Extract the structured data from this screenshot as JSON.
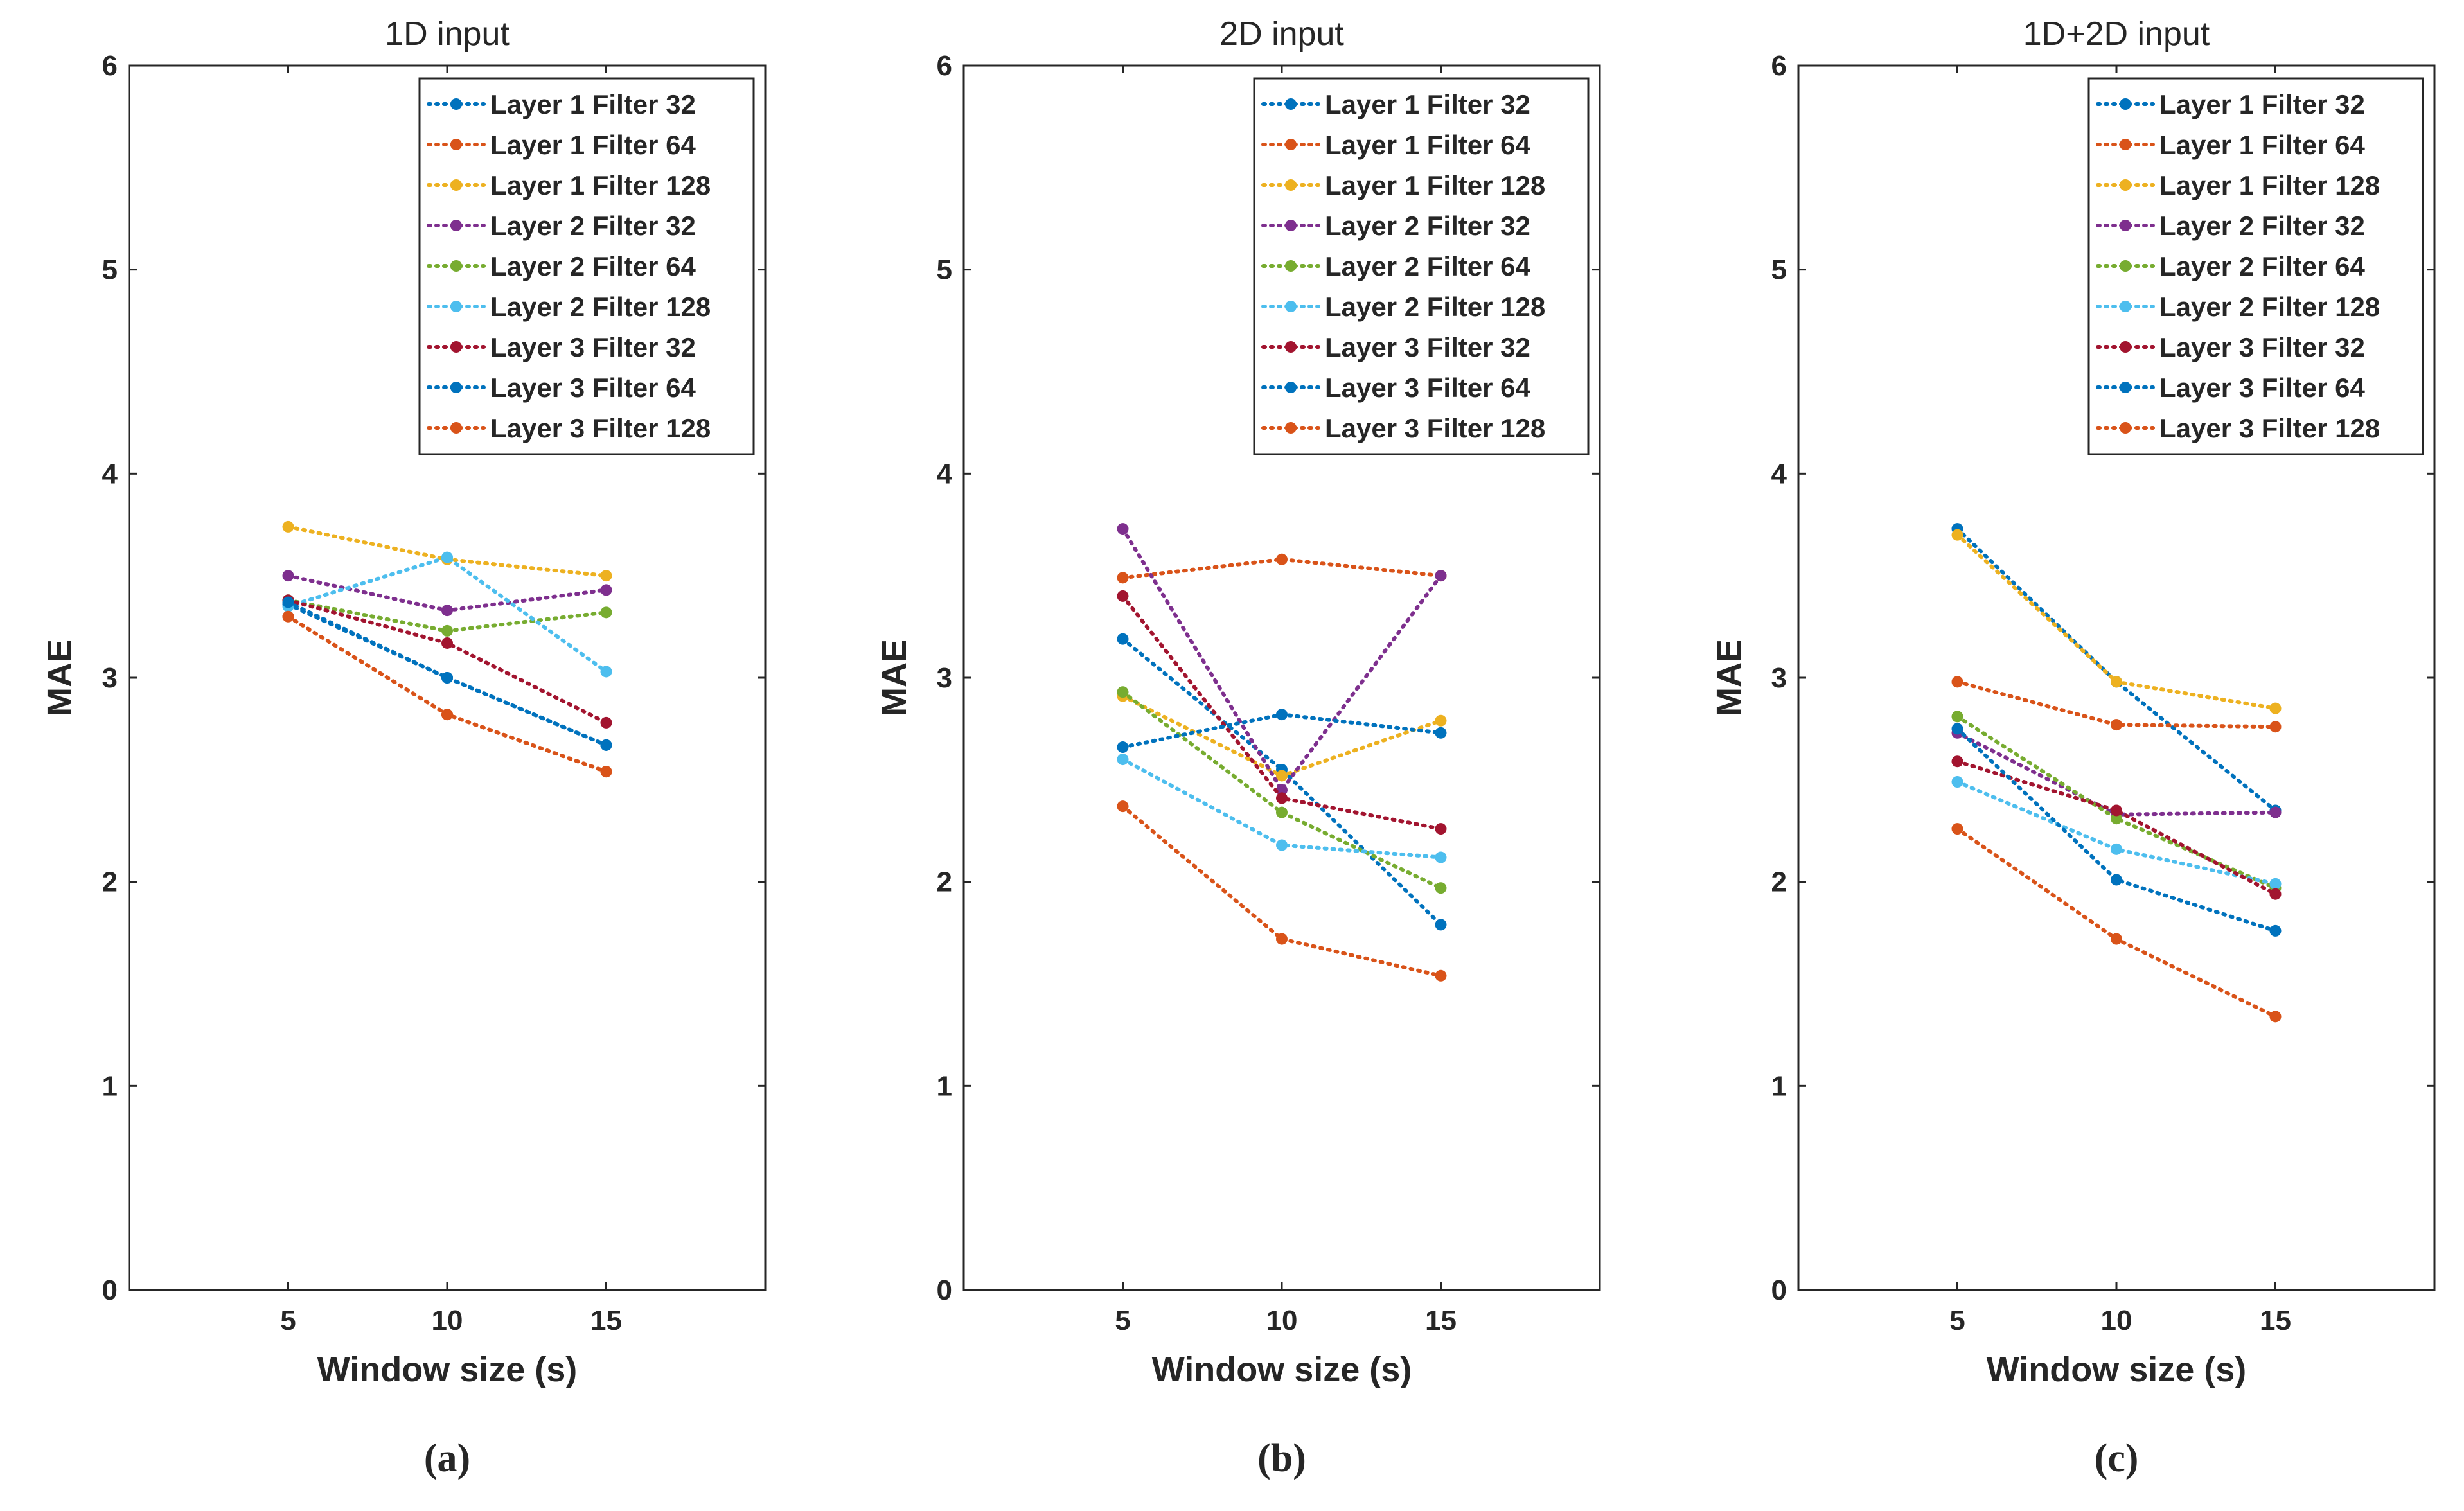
{
  "chart_data": [
    {
      "type": "line",
      "title": "1D input",
      "caption": "(a)",
      "xlabel": "Window size (s)",
      "ylabel": "MAE",
      "x": [
        5,
        10,
        15
      ],
      "x_ticks": [
        "5",
        "10",
        "15"
      ],
      "xlim": [
        0,
        20
      ],
      "ylim": [
        0,
        6
      ],
      "y_ticks": [
        "0",
        "1",
        "2",
        "3",
        "4",
        "5",
        "6"
      ],
      "grid": false,
      "legend_position": "top-right",
      "series": [
        {
          "name": "Layer 1 Filter 32",
          "color": "#0072BD",
          "values": [
            3.36,
            3.0,
            2.67
          ]
        },
        {
          "name": "Layer 1 Filter 64",
          "color": "#D95319",
          "values": [
            3.3,
            2.82,
            2.54
          ]
        },
        {
          "name": "Layer 1 Filter 128",
          "color": "#EDB120",
          "values": [
            3.74,
            3.58,
            3.5
          ]
        },
        {
          "name": "Layer 2 Filter 32",
          "color": "#7E2F8E",
          "values": [
            3.5,
            3.33,
            3.43
          ]
        },
        {
          "name": "Layer 2 Filter 64",
          "color": "#77AC30",
          "values": [
            3.38,
            3.23,
            3.32
          ]
        },
        {
          "name": "Layer 2 Filter 128",
          "color": "#4DBEEE",
          "values": [
            3.35,
            3.59,
            3.03
          ]
        },
        {
          "name": "Layer 3 Filter 32",
          "color": "#A2142F",
          "values": [
            3.38,
            3.17,
            2.78
          ]
        },
        {
          "name": "Layer 3 Filter 64",
          "color": "#0072BD",
          "values": [
            3.37,
            3.0,
            2.67
          ]
        },
        {
          "name": "Layer 3 Filter 128",
          "color": "#D95319",
          "values": [
            3.3,
            2.82,
            2.54
          ]
        }
      ]
    },
    {
      "type": "line",
      "title": "2D input",
      "caption": "(b)",
      "xlabel": "Window size (s)",
      "ylabel": "MAE",
      "x": [
        5,
        10,
        15
      ],
      "x_ticks": [
        "5",
        "10",
        "15"
      ],
      "xlim": [
        0,
        20
      ],
      "ylim": [
        0,
        6
      ],
      "y_ticks": [
        "0",
        "1",
        "2",
        "3",
        "4",
        "5",
        "6"
      ],
      "grid": false,
      "legend_position": "top-right",
      "series": [
        {
          "name": "Layer 1 Filter 32",
          "color": "#0072BD",
          "values": [
            3.19,
            2.55,
            1.79
          ]
        },
        {
          "name": "Layer 1 Filter 64",
          "color": "#D95319",
          "values": [
            3.49,
            3.58,
            3.5
          ]
        },
        {
          "name": "Layer 1 Filter 128",
          "color": "#EDB120",
          "values": [
            2.91,
            2.52,
            2.79
          ]
        },
        {
          "name": "Layer 2 Filter 32",
          "color": "#7E2F8E",
          "values": [
            3.73,
            2.45,
            3.5
          ]
        },
        {
          "name": "Layer 2 Filter 64",
          "color": "#77AC30",
          "values": [
            2.93,
            2.34,
            1.97
          ]
        },
        {
          "name": "Layer 2 Filter 128",
          "color": "#4DBEEE",
          "values": [
            2.6,
            2.18,
            2.12
          ]
        },
        {
          "name": "Layer 3 Filter 32",
          "color": "#A2142F",
          "values": [
            3.4,
            2.41,
            2.26
          ]
        },
        {
          "name": "Layer 3 Filter 64",
          "color": "#0072BD",
          "values": [
            2.66,
            2.82,
            2.73
          ]
        },
        {
          "name": "Layer 3 Filter 128",
          "color": "#D95319",
          "values": [
            2.37,
            1.72,
            1.54
          ]
        }
      ]
    },
    {
      "type": "line",
      "title": "1D+2D input",
      "caption": "(c)",
      "xlabel": "Window size (s)",
      "ylabel": "MAE",
      "x": [
        5,
        10,
        15
      ],
      "x_ticks": [
        "5",
        "10",
        "15"
      ],
      "xlim": [
        0,
        20
      ],
      "ylim": [
        0,
        6
      ],
      "y_ticks": [
        "0",
        "1",
        "2",
        "3",
        "4",
        "5",
        "6"
      ],
      "grid": false,
      "legend_position": "top-right",
      "series": [
        {
          "name": "Layer 1 Filter 32",
          "color": "#0072BD",
          "values": [
            3.73,
            2.98,
            2.35
          ]
        },
        {
          "name": "Layer 1 Filter 64",
          "color": "#D95319",
          "values": [
            2.98,
            2.77,
            2.76
          ]
        },
        {
          "name": "Layer 1 Filter 128",
          "color": "#EDB120",
          "values": [
            3.7,
            2.98,
            2.85
          ]
        },
        {
          "name": "Layer 2 Filter 32",
          "color": "#7E2F8E",
          "values": [
            2.73,
            2.33,
            2.34
          ]
        },
        {
          "name": "Layer 2 Filter 64",
          "color": "#77AC30",
          "values": [
            2.81,
            2.31,
            1.97
          ]
        },
        {
          "name": "Layer 2 Filter 128",
          "color": "#4DBEEE",
          "values": [
            2.49,
            2.16,
            1.99
          ]
        },
        {
          "name": "Layer 3 Filter 32",
          "color": "#A2142F",
          "values": [
            2.59,
            2.35,
            1.94
          ]
        },
        {
          "name": "Layer 3 Filter 64",
          "color": "#0072BD",
          "values": [
            2.75,
            2.01,
            1.76
          ]
        },
        {
          "name": "Layer 3 Filter 128",
          "color": "#D95319",
          "values": [
            2.26,
            1.72,
            1.34
          ]
        }
      ]
    }
  ]
}
